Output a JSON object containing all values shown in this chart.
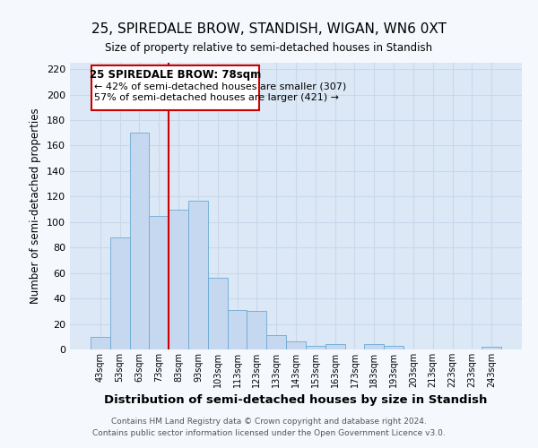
{
  "title": "25, SPIREDALE BROW, STANDISH, WIGAN, WN6 0XT",
  "subtitle": "Size of property relative to semi-detached houses in Standish",
  "xlabel": "Distribution of semi-detached houses by size in Standish",
  "ylabel": "Number of semi-detached properties",
  "bar_color": "#c5d8f0",
  "bar_edge_color": "#6aaad4",
  "axes_bg_color": "#dce8f5",
  "fig_bg_color": "#f5f8fd",
  "grid_color": "#c8d8ec",
  "categories": [
    "43sqm",
    "53sqm",
    "63sqm",
    "73sqm",
    "83sqm",
    "93sqm",
    "103sqm",
    "113sqm",
    "123sqm",
    "133sqm",
    "143sqm",
    "153sqm",
    "163sqm",
    "173sqm",
    "183sqm",
    "193sqm",
    "203sqm",
    "213sqm",
    "223sqm",
    "233sqm",
    "243sqm"
  ],
  "values": [
    10,
    88,
    170,
    105,
    110,
    117,
    56,
    31,
    30,
    11,
    6,
    3,
    4,
    0,
    4,
    3,
    0,
    0,
    0,
    0,
    2
  ],
  "property_line_x": 3.5,
  "property_line_color": "#cc0000",
  "annotation_title": "25 SPIREDALE BROW: 78sqm",
  "annotation_line1": "← 42% of semi-detached houses are smaller (307)",
  "annotation_line2": "57% of semi-detached houses are larger (421) →",
  "ylim": [
    0,
    225
  ],
  "yticks": [
    0,
    20,
    40,
    60,
    80,
    100,
    120,
    140,
    160,
    180,
    200,
    220
  ],
  "footer1": "Contains HM Land Registry data © Crown copyright and database right 2024.",
  "footer2": "Contains public sector information licensed under the Open Government Licence v3.0."
}
